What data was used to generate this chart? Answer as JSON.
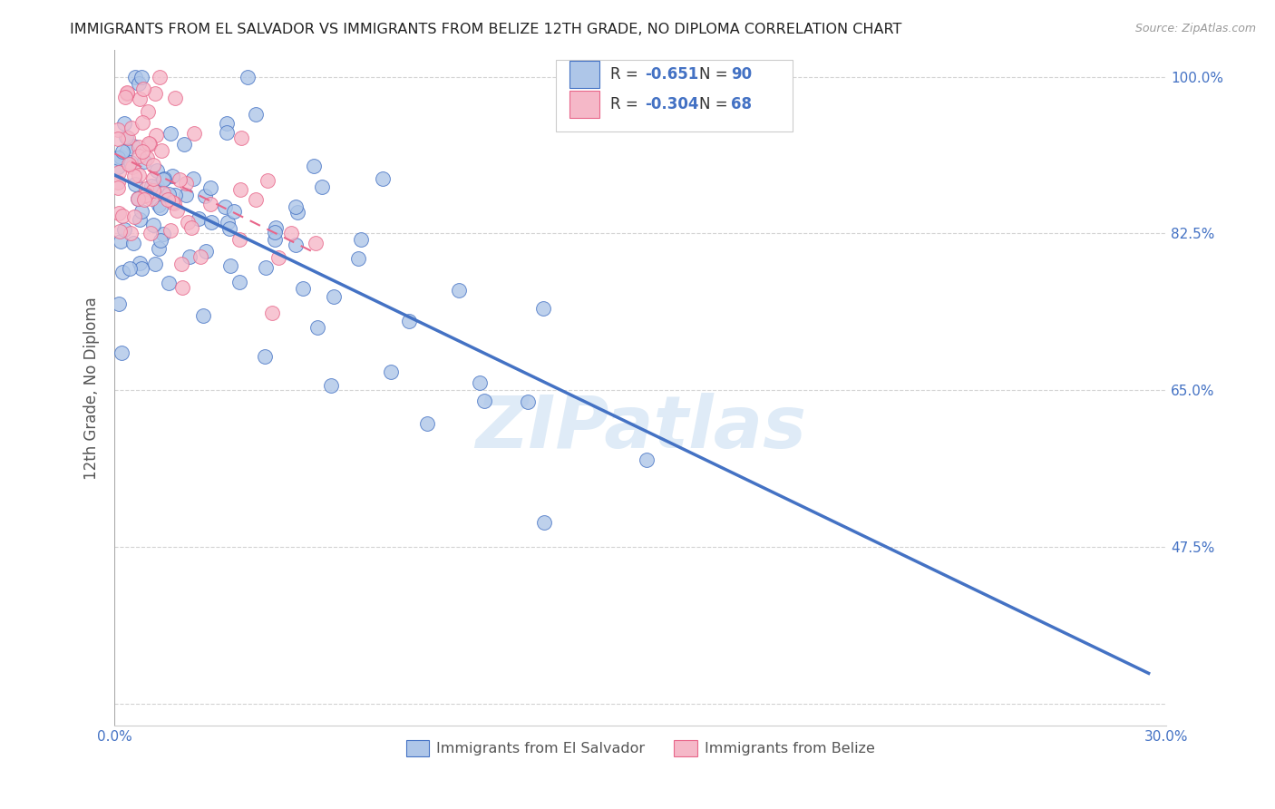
{
  "title": "IMMIGRANTS FROM EL SALVADOR VS IMMIGRANTS FROM BELIZE 12TH GRADE, NO DIPLOMA CORRELATION CHART",
  "source": "Source: ZipAtlas.com",
  "ylabel": "12th Grade, No Diploma",
  "xmin": 0.0,
  "xmax": 0.3,
  "ymin": 0.275,
  "ymax": 1.03,
  "yticks": [
    0.3,
    0.475,
    0.65,
    0.825,
    1.0
  ],
  "ytick_labels": [
    "",
    "47.5%",
    "65.0%",
    "82.5%",
    "100.0%"
  ],
  "xticks": [
    0.0,
    0.05,
    0.1,
    0.15,
    0.2,
    0.25,
    0.3
  ],
  "xtick_labels": [
    "0.0%",
    "",
    "",
    "",
    "",
    "",
    "30.0%"
  ],
  "r_salvador": -0.651,
  "n_salvador": 90,
  "r_belize": -0.304,
  "n_belize": 68,
  "color_salvador": "#aec6e8",
  "color_belize": "#f5b8c8",
  "line_color_salvador": "#4472C4",
  "line_color_belize": "#E8668A",
  "watermark": "ZIPatlas",
  "background_color": "#ffffff",
  "grid_color": "#d3d3d3",
  "tick_color": "#4472C4"
}
